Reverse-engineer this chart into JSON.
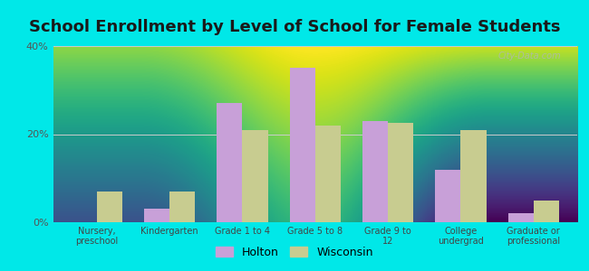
{
  "title": "School Enrollment by Level of School for Female Students",
  "categories": [
    "Nursery,\npreschool",
    "Kindergarten",
    "Grade 1 to 4",
    "Grade 5 to 8",
    "Grade 9 to\n12",
    "College\nundergrad",
    "Graduate or\nprofessional"
  ],
  "holton": [
    0.0,
    3.0,
    27.0,
    35.0,
    23.0,
    12.0,
    2.0
  ],
  "wisconsin": [
    7.0,
    7.0,
    21.0,
    22.0,
    22.5,
    21.0,
    5.0
  ],
  "holton_color": "#c8a0d8",
  "wisconsin_color": "#c8cc90",
  "bg_color": "#00e8e8",
  "plot_bg_top": "#f5fffa",
  "plot_bg_bottom": "#d8f0cc",
  "ylim": [
    0,
    40
  ],
  "yticks": [
    0,
    20,
    40
  ],
  "ytick_labels": [
    "0%",
    "20%",
    "40%"
  ],
  "bar_width": 0.35,
  "title_fontsize": 13,
  "watermark": "City-Data.com",
  "legend_holton": "Holton",
  "legend_wisconsin": "Wisconsin"
}
